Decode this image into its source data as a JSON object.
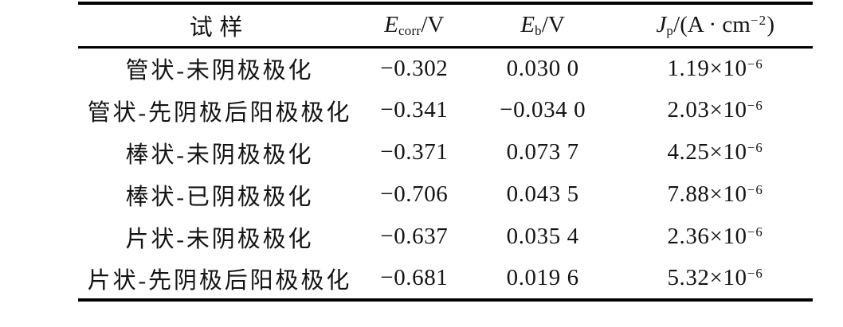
{
  "table": {
    "header": {
      "sample": "试样",
      "e_corr": {
        "base": "E",
        "sub": "corr",
        "rest": "/V"
      },
      "e_b": {
        "base": "E",
        "sub": "b",
        "rest": "/V"
      },
      "j_p": {
        "base": "J",
        "sub": "p",
        "rest": "/(A · cm",
        "sup": "−2",
        "close": ")"
      }
    },
    "rows": [
      {
        "sample": "管状-未阴极极化",
        "e_corr": "−0.302",
        "e_b": "0.030 0",
        "j_p": {
          "base": "1.19×10",
          "sup": "−6"
        }
      },
      {
        "sample": "管状-先阴极后阳极极化",
        "e_corr": "−0.341",
        "e_b": "−0.034 0",
        "j_p": {
          "base": "2.03×10",
          "sup": "−6"
        }
      },
      {
        "sample": "棒状-未阴极极化",
        "e_corr": "−0.371",
        "e_b": "0.073 7",
        "j_p": {
          "base": "4.25×10",
          "sup": "−6"
        }
      },
      {
        "sample": "棒状-已阴极极化",
        "e_corr": "−0.706",
        "e_b": "0.043 5",
        "j_p": {
          "base": "7.88×10",
          "sup": "−6"
        }
      },
      {
        "sample": "片状-未阴极极化",
        "e_corr": "−0.637",
        "e_b": "0.035 4",
        "j_p": {
          "base": "2.36×10",
          "sup": "−6"
        }
      },
      {
        "sample": "片状-先阴极后阳极极化",
        "e_corr": "−0.681",
        "e_b": "0.019 6",
        "j_p": {
          "base": "5.32×10",
          "sup": "−6"
        }
      }
    ],
    "colors": {
      "text": "#141414",
      "rule": "#000000",
      "background": "#ffffff"
    }
  }
}
